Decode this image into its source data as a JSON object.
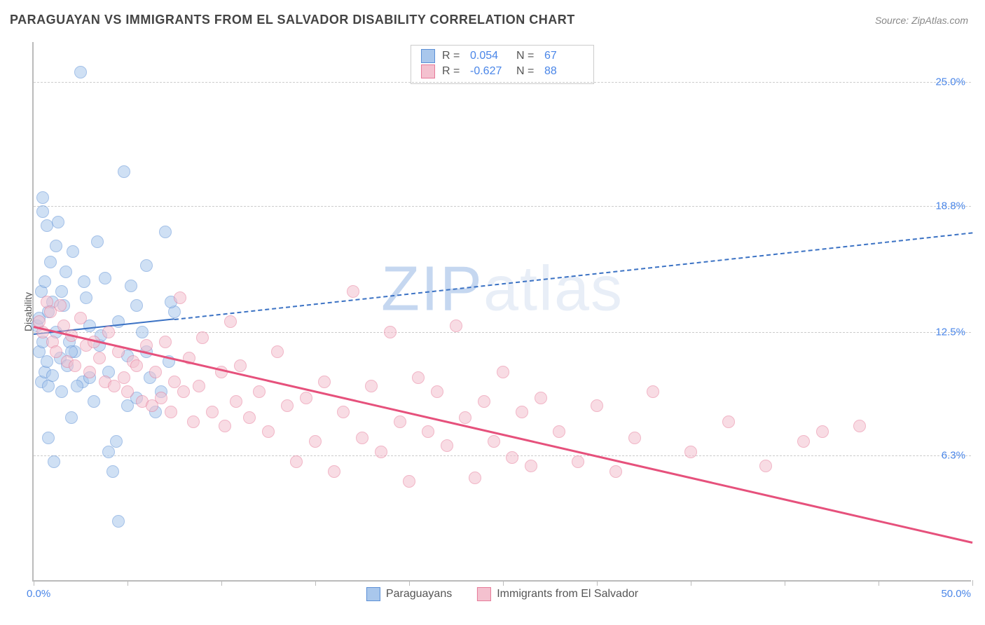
{
  "header": {
    "title": "PARAGUAYAN VS IMMIGRANTS FROM EL SALVADOR DISABILITY CORRELATION CHART",
    "source": "Source: ZipAtlas.com"
  },
  "chart": {
    "type": "scatter",
    "watermark_prefix": "ZIP",
    "watermark_suffix": "atlas",
    "ylabel": "Disability",
    "background_color": "#ffffff",
    "grid_color": "#cccccc",
    "axis_color": "#bbbbbb",
    "tick_label_color": "#4a86e8",
    "xlim": [
      0,
      50
    ],
    "ylim": [
      0,
      27
    ],
    "xticks": [
      0,
      5,
      10,
      15,
      20,
      25,
      30,
      35,
      40,
      45,
      50
    ],
    "xlabel_min": "0.0%",
    "xlabel_max": "50.0%",
    "y_gridlines": [
      {
        "value": 6.3,
        "label": "6.3%"
      },
      {
        "value": 12.5,
        "label": "12.5%"
      },
      {
        "value": 18.8,
        "label": "18.8%"
      },
      {
        "value": 25.0,
        "label": "25.0%"
      }
    ],
    "series": [
      {
        "key": "paraguayans",
        "name": "Paraguayans",
        "marker_fill": "#a9c7ec",
        "marker_stroke": "#5b8fd6",
        "line_color": "#3b72c4",
        "line_width": 2,
        "solid_x_range": [
          0,
          7.5
        ],
        "dashed_x_range": [
          7.5,
          50
        ],
        "R": "0.054",
        "N": "67",
        "trend": {
          "x1": 0,
          "y1": 12.4,
          "x2": 50,
          "y2": 17.5
        },
        "points": [
          [
            0.2,
            12.8
          ],
          [
            0.3,
            11.5
          ],
          [
            0.3,
            13.2
          ],
          [
            0.4,
            10.0
          ],
          [
            0.4,
            14.5
          ],
          [
            0.5,
            12.0
          ],
          [
            0.5,
            18.5
          ],
          [
            0.6,
            10.5
          ],
          [
            0.6,
            15.0
          ],
          [
            0.7,
            11.0
          ],
          [
            0.7,
            17.8
          ],
          [
            0.8,
            9.8
          ],
          [
            0.8,
            13.5
          ],
          [
            0.9,
            16.0
          ],
          [
            1.0,
            10.3
          ],
          [
            1.0,
            14.0
          ],
          [
            1.1,
            6.0
          ],
          [
            1.2,
            12.5
          ],
          [
            1.3,
            18.0
          ],
          [
            1.4,
            11.2
          ],
          [
            1.5,
            9.5
          ],
          [
            1.6,
            13.8
          ],
          [
            1.7,
            15.5
          ],
          [
            1.8,
            10.8
          ],
          [
            1.9,
            12.0
          ],
          [
            2.0,
            8.2
          ],
          [
            2.1,
            16.5
          ],
          [
            2.2,
            11.5
          ],
          [
            2.5,
            25.5
          ],
          [
            2.6,
            10.0
          ],
          [
            2.8,
            14.2
          ],
          [
            3.0,
            12.8
          ],
          [
            3.2,
            9.0
          ],
          [
            3.4,
            17.0
          ],
          [
            3.5,
            11.8
          ],
          [
            3.8,
            15.2
          ],
          [
            4.0,
            10.5
          ],
          [
            4.2,
            5.5
          ],
          [
            4.4,
            7.0
          ],
          [
            4.5,
            13.0
          ],
          [
            4.8,
            20.5
          ],
          [
            5.0,
            11.3
          ],
          [
            5.2,
            14.8
          ],
          [
            5.5,
            9.2
          ],
          [
            5.8,
            12.5
          ],
          [
            6.0,
            15.8
          ],
          [
            6.2,
            10.2
          ],
          [
            6.5,
            8.5
          ],
          [
            7.0,
            17.5
          ],
          [
            7.2,
            11.0
          ],
          [
            7.5,
            13.5
          ],
          [
            0.5,
            19.2
          ],
          [
            0.8,
            7.2
          ],
          [
            1.2,
            16.8
          ],
          [
            1.5,
            14.5
          ],
          [
            2.0,
            11.5
          ],
          [
            2.3,
            9.8
          ],
          [
            2.7,
            15.0
          ],
          [
            3.0,
            10.2
          ],
          [
            3.6,
            12.3
          ],
          [
            4.0,
            6.5
          ],
          [
            4.5,
            3.0
          ],
          [
            5.0,
            8.8
          ],
          [
            5.5,
            13.8
          ],
          [
            6.0,
            11.5
          ],
          [
            6.8,
            9.5
          ],
          [
            7.3,
            14.0
          ]
        ]
      },
      {
        "key": "el_salvador",
        "name": "Immigrants from El Salvador",
        "marker_fill": "#f4c1cf",
        "marker_stroke": "#e67a99",
        "line_color": "#e6517c",
        "line_width": 3,
        "solid_x_range": [
          0,
          50
        ],
        "dashed_x_range": null,
        "R": "-0.627",
        "N": "88",
        "trend": {
          "x1": 0,
          "y1": 12.8,
          "x2": 50,
          "y2": 2.0
        },
        "points": [
          [
            0.3,
            13.0
          ],
          [
            0.5,
            12.5
          ],
          [
            0.7,
            14.0
          ],
          [
            0.9,
            13.5
          ],
          [
            1.0,
            12.0
          ],
          [
            1.2,
            11.5
          ],
          [
            1.4,
            13.8
          ],
          [
            1.6,
            12.8
          ],
          [
            1.8,
            11.0
          ],
          [
            2.0,
            12.3
          ],
          [
            2.2,
            10.8
          ],
          [
            2.5,
            13.2
          ],
          [
            2.8,
            11.8
          ],
          [
            3.0,
            10.5
          ],
          [
            3.2,
            12.0
          ],
          [
            3.5,
            11.2
          ],
          [
            3.8,
            10.0
          ],
          [
            4.0,
            12.5
          ],
          [
            4.3,
            9.8
          ],
          [
            4.5,
            11.5
          ],
          [
            4.8,
            10.2
          ],
          [
            5.0,
            9.5
          ],
          [
            5.3,
            11.0
          ],
          [
            5.5,
            10.8
          ],
          [
            5.8,
            9.0
          ],
          [
            6.0,
            11.8
          ],
          [
            6.3,
            8.8
          ],
          [
            6.5,
            10.5
          ],
          [
            6.8,
            9.2
          ],
          [
            7.0,
            12.0
          ],
          [
            7.3,
            8.5
          ],
          [
            7.5,
            10.0
          ],
          [
            7.8,
            14.2
          ],
          [
            8.0,
            9.5
          ],
          [
            8.3,
            11.2
          ],
          [
            8.5,
            8.0
          ],
          [
            8.8,
            9.8
          ],
          [
            9.0,
            12.2
          ],
          [
            9.5,
            8.5
          ],
          [
            10.0,
            10.5
          ],
          [
            10.2,
            7.8
          ],
          [
            10.5,
            13.0
          ],
          [
            10.8,
            9.0
          ],
          [
            11.0,
            10.8
          ],
          [
            11.5,
            8.2
          ],
          [
            12.0,
            9.5
          ],
          [
            12.5,
            7.5
          ],
          [
            13.0,
            11.5
          ],
          [
            13.5,
            8.8
          ],
          [
            14.0,
            6.0
          ],
          [
            14.5,
            9.2
          ],
          [
            15.0,
            7.0
          ],
          [
            15.5,
            10.0
          ],
          [
            16.0,
            5.5
          ],
          [
            16.5,
            8.5
          ],
          [
            17.0,
            14.5
          ],
          [
            17.5,
            7.2
          ],
          [
            18.0,
            9.8
          ],
          [
            18.5,
            6.5
          ],
          [
            19.0,
            12.5
          ],
          [
            19.5,
            8.0
          ],
          [
            20.0,
            5.0
          ],
          [
            20.5,
            10.2
          ],
          [
            21.0,
            7.5
          ],
          [
            21.5,
            9.5
          ],
          [
            22.0,
            6.8
          ],
          [
            22.5,
            12.8
          ],
          [
            23.0,
            8.2
          ],
          [
            23.5,
            5.2
          ],
          [
            24.0,
            9.0
          ],
          [
            24.5,
            7.0
          ],
          [
            25.0,
            10.5
          ],
          [
            25.5,
            6.2
          ],
          [
            26.0,
            8.5
          ],
          [
            26.5,
            5.8
          ],
          [
            27.0,
            9.2
          ],
          [
            28.0,
            7.5
          ],
          [
            29.0,
            6.0
          ],
          [
            30.0,
            8.8
          ],
          [
            31.0,
            5.5
          ],
          [
            32.0,
            7.2
          ],
          [
            33.0,
            9.5
          ],
          [
            35.0,
            6.5
          ],
          [
            37.0,
            8.0
          ],
          [
            39.0,
            5.8
          ],
          [
            41.0,
            7.0
          ],
          [
            42.0,
            7.5
          ],
          [
            44.0,
            7.8
          ]
        ]
      }
    ]
  },
  "stats_labels": {
    "R": "R =",
    "N": "N ="
  },
  "legend": {
    "item1": "Paraguayans",
    "item2": "Immigrants from El Salvador"
  }
}
